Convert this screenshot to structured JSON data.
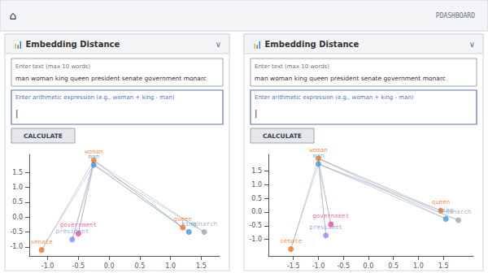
{
  "annotations": [
    "⌂",
    "PDASHBOARD"
  ],
  "chart_data": [
    {
      "type": "scatter",
      "title": "📊 Embedding Distance",
      "annotations": [
        "∨",
        "Enter text (max 10 words)",
        "man woman king queen president senate government monarc",
        "Enter arithmetic expression (e.g., woman + king - man)",
        "|",
        "CALCULATE"
      ],
      "labels": [
        "woman",
        "man",
        "king",
        "queen",
        "government",
        "president",
        "senate",
        "monarch"
      ],
      "x": [
        -0.25,
        -0.25,
        1.3,
        1.2,
        -0.5,
        -0.6,
        -1.1,
        1.55
      ],
      "values": [
        1.9,
        1.75,
        -0.5,
        -0.35,
        -0.55,
        -0.75,
        -1.1,
        -0.5
      ],
      "colors": [
        "#f97316",
        "#4299e1",
        "#4299e1",
        "#f97316",
        "#ec4899",
        "#818cf8",
        "#f97316",
        "#9ca3af"
      ],
      "xlim": [
        -1.3,
        1.8
      ],
      "ylim": [
        -1.3,
        2.1
      ],
      "xticks": [
        {
          "value": -1.0,
          "label": "-1.0"
        },
        -0.5,
        {
          "value": 0.0,
          "label": "0.0"
        },
        0.5,
        {
          "value": 1.0,
          "label": "1.0"
        },
        1.5
      ],
      "yticks": [
        {
          "value": -1.0,
          "label": "-1.0"
        },
        -0.5,
        {
          "value": 0.0,
          "label": "0.0"
        },
        0.5,
        {
          "value": 1.0,
          "label": "1.0"
        },
        1.5
      ],
      "grid": false
    },
    {
      "type": "scatter",
      "title": "📊 Embedding Distance",
      "annotations": [
        "∨",
        "Enter text (max 10 words)",
        "man woman king queen president senate government monarc",
        "Enter arithmetic expression (e.g., woman + king - man)",
        "|",
        "CALCULATE"
      ],
      "labels": [
        "woman",
        "man",
        "king",
        "queen",
        "government",
        "president",
        "senate",
        "monarch"
      ],
      "x": [
        -1.0,
        -1.0,
        1.55,
        1.45,
        -0.75,
        -0.85,
        -1.55,
        1.8
      ],
      "values": [
        1.95,
        1.75,
        -0.25,
        0.05,
        -0.45,
        -0.85,
        -1.35,
        -0.3
      ],
      "colors": [
        "#f97316",
        "#4299e1",
        "#4299e1",
        "#f97316",
        "#ec4899",
        "#818cf8",
        "#f97316",
        "#9ca3af"
      ],
      "xlim": [
        -2.0,
        2.1
      ],
      "ylim": [
        -1.6,
        2.1
      ],
      "xticks": [
        -1.5,
        {
          "value": -1.0,
          "label": "-1.0"
        },
        -0.5,
        {
          "value": 0.0,
          "label": "0.0"
        },
        0.5,
        {
          "value": 1.0,
          "label": "1.0"
        },
        1.5
      ],
      "yticks": [
        {
          "value": -1.0,
          "label": "-1.0"
        },
        -0.5,
        {
          "value": 0.0,
          "label": "0.0"
        },
        0.5,
        {
          "value": 1.0,
          "label": "1.0"
        },
        1.5
      ],
      "grid": false
    }
  ]
}
